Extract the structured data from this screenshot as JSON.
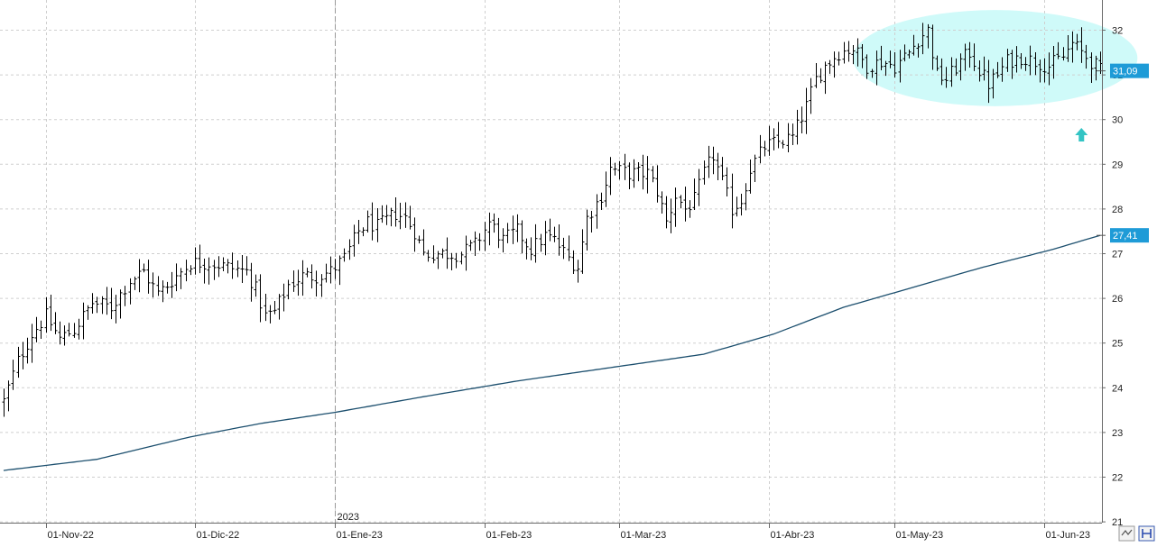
{
  "chart_data": {
    "type": "ohlc-bar",
    "grid": true,
    "ylim": [
      21,
      32.6
    ],
    "y_ticks": [
      21,
      22,
      23,
      24,
      25,
      26,
      27,
      28,
      29,
      30,
      31,
      32
    ],
    "x_ticks": [
      {
        "label": "01-Nov-22",
        "bar": 9
      },
      {
        "label": "01-Dic-22",
        "bar": 41
      },
      {
        "label": "01-Ene-23",
        "bar": 71
      },
      {
        "label": "01-Feb-23",
        "bar": 103
      },
      {
        "label": "01-Mar-23",
        "bar": 132
      },
      {
        "label": "01-Abr-23",
        "bar": 164
      },
      {
        "label": "01-May-23",
        "bar": 191
      },
      {
        "label": "01-Jun-23",
        "bar": 223
      }
    ],
    "year_marker": {
      "label": "2023",
      "bar": 71
    },
    "last_price": {
      "label": "31,09",
      "value": 31.09,
      "color": "#1e9bd7"
    },
    "ma_last": {
      "label": "27,41",
      "value": 27.41,
      "color": "#1e9bd7"
    },
    "colors": {
      "bars": "#000000",
      "moving_average": "#1c4f6e",
      "highlight": "#cffaf9",
      "arrow": "#33c4c4",
      "badge": "#1e9bd7"
    },
    "highlight": {
      "shape": "ellipse",
      "from_bar": 182,
      "to_bar": 243,
      "y_top": 32.45,
      "y_bottom": 30.3
    },
    "arrow": {
      "direction": "up",
      "bar": 231,
      "value": 29.65
    },
    "price_anchors": [
      [
        0,
        23.7
      ],
      [
        3,
        24.6
      ],
      [
        6,
        25.2
      ],
      [
        9,
        25.6
      ],
      [
        12,
        25.1
      ],
      [
        15,
        25.3
      ],
      [
        19,
        25.9
      ],
      [
        23,
        25.8
      ],
      [
        27,
        26.4
      ],
      [
        30,
        26.6
      ],
      [
        33,
        26.1
      ],
      [
        36,
        26.4
      ],
      [
        40,
        26.8
      ],
      [
        44,
        26.8
      ],
      [
        48,
        26.7
      ],
      [
        52,
        26.6
      ],
      [
        54,
        26.2
      ],
      [
        56,
        25.6
      ],
      [
        58,
        25.7
      ],
      [
        61,
        26.3
      ],
      [
        64,
        26.5
      ],
      [
        67,
        26.5
      ],
      [
        70,
        26.6
      ],
      [
        73,
        26.9
      ],
      [
        76,
        27.5
      ],
      [
        78,
        27.7
      ],
      [
        80,
        27.6
      ],
      [
        84,
        27.9
      ],
      [
        86,
        27.8
      ],
      [
        88,
        27.5
      ],
      [
        90,
        27.0
      ],
      [
        94,
        27.0
      ],
      [
        98,
        27.0
      ],
      [
        101,
        27.2
      ],
      [
        104,
        27.7
      ],
      [
        107,
        27.3
      ],
      [
        110,
        27.5
      ],
      [
        113,
        27.1
      ],
      [
        116,
        27.4
      ],
      [
        118,
        27.3
      ],
      [
        121,
        26.9
      ],
      [
        123,
        26.7
      ],
      [
        125,
        27.8
      ],
      [
        128,
        28.3
      ],
      [
        130,
        28.9
      ],
      [
        134,
        28.8
      ],
      [
        138,
        28.8
      ],
      [
        140,
        28.4
      ],
      [
        142,
        27.7
      ],
      [
        144,
        28.3
      ],
      [
        146,
        28.0
      ],
      [
        148,
        28.2
      ],
      [
        150,
        28.8
      ],
      [
        152,
        29.2
      ],
      [
        154,
        28.6
      ],
      [
        156,
        28.0
      ],
      [
        158,
        28.2
      ],
      [
        160,
        28.9
      ],
      [
        163,
        29.4
      ],
      [
        166,
        29.5
      ],
      [
        169,
        29.6
      ],
      [
        172,
        30.3
      ],
      [
        174,
        30.9
      ],
      [
        176,
        31.2
      ],
      [
        179,
        31.5
      ],
      [
        182,
        31.6
      ],
      [
        185,
        31.2
      ],
      [
        188,
        31.3
      ],
      [
        191,
        31.2
      ],
      [
        194,
        31.5
      ],
      [
        196,
        31.8
      ],
      [
        198,
        32.0
      ],
      [
        200,
        31.0
      ],
      [
        202,
        30.9
      ],
      [
        205,
        31.3
      ],
      [
        207,
        31.5
      ],
      [
        209,
        31.1
      ],
      [
        211,
        30.8
      ],
      [
        213,
        31.0
      ],
      [
        215,
        31.3
      ],
      [
        218,
        31.4
      ],
      [
        221,
        31.3
      ],
      [
        224,
        31.2
      ],
      [
        227,
        31.4
      ],
      [
        229,
        31.7
      ],
      [
        231,
        31.5
      ],
      [
        233,
        31.3
      ],
      [
        235,
        31.1
      ]
    ],
    "ma_anchors": [
      [
        0,
        22.15
      ],
      [
        20,
        22.4
      ],
      [
        40,
        22.9
      ],
      [
        55,
        23.2
      ],
      [
        71,
        23.45
      ],
      [
        90,
        23.8
      ],
      [
        110,
        24.15
      ],
      [
        130,
        24.45
      ],
      [
        150,
        24.75
      ],
      [
        165,
        25.2
      ],
      [
        180,
        25.8
      ],
      [
        195,
        26.25
      ],
      [
        210,
        26.7
      ],
      [
        225,
        27.1
      ],
      [
        235,
        27.41
      ]
    ]
  }
}
